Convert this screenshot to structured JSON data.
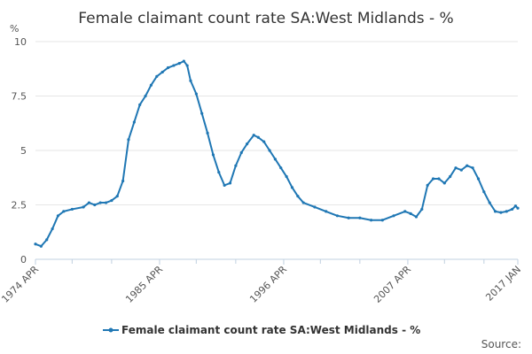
{
  "colors": {
    "series": "#1f77b4",
    "grid": "#e6e6e6",
    "text": "#333333"
  },
  "source_label": "Source:",
  "chart_data": {
    "type": "line",
    "title": "Female claimant count rate SA:West Midlands - %",
    "ylabel": "%",
    "ylim": [
      0,
      10
    ],
    "y_ticks": [
      0,
      2.5,
      5,
      7.5,
      10
    ],
    "y_tick_labels": [
      "0",
      "2.5",
      "5",
      "7.5",
      "10"
    ],
    "x_range": [
      1974.25,
      2017.0
    ],
    "x_ticks": [
      {
        "x": 1974.25,
        "label": "1974 APR"
      },
      {
        "x": 1985.25,
        "label": "1985 APR"
      },
      {
        "x": 1996.25,
        "label": "1996 APR"
      },
      {
        "x": 2007.25,
        "label": "2007 APR"
      },
      {
        "x": 2017.0,
        "label": "2017 JAN"
      }
    ],
    "minor_ticks": [
      1977.5,
      1981.0,
      1988.5,
      1992.0,
      1999.5,
      2003.0,
      2010.5,
      2014.0
    ],
    "grid": true,
    "legend_position": "bottom",
    "series": [
      {
        "name": "Female claimant count rate SA:West Midlands - %",
        "color": "#1f77b4",
        "points": [
          [
            1974.25,
            0.7
          ],
          [
            1974.75,
            0.6
          ],
          [
            1975.25,
            0.9
          ],
          [
            1975.75,
            1.4
          ],
          [
            1976.25,
            2.0
          ],
          [
            1976.75,
            2.2
          ],
          [
            1977.5,
            2.3
          ],
          [
            1978.5,
            2.4
          ],
          [
            1979.0,
            2.6
          ],
          [
            1979.5,
            2.5
          ],
          [
            1980.0,
            2.6
          ],
          [
            1980.5,
            2.6
          ],
          [
            1981.0,
            2.7
          ],
          [
            1981.5,
            2.9
          ],
          [
            1982.0,
            3.6
          ],
          [
            1982.5,
            5.5
          ],
          [
            1983.0,
            6.3
          ],
          [
            1983.5,
            7.1
          ],
          [
            1984.0,
            7.5
          ],
          [
            1984.5,
            8.0
          ],
          [
            1985.0,
            8.4
          ],
          [
            1985.5,
            8.6
          ],
          [
            1986.0,
            8.8
          ],
          [
            1986.5,
            8.9
          ],
          [
            1987.0,
            9.0
          ],
          [
            1987.4,
            9.1
          ],
          [
            1987.7,
            8.9
          ],
          [
            1988.0,
            8.2
          ],
          [
            1988.5,
            7.6
          ],
          [
            1989.0,
            6.7
          ],
          [
            1989.5,
            5.8
          ],
          [
            1990.0,
            4.8
          ],
          [
            1990.5,
            4.0
          ],
          [
            1991.0,
            3.4
          ],
          [
            1991.5,
            3.5
          ],
          [
            1992.0,
            4.3
          ],
          [
            1992.5,
            4.9
          ],
          [
            1993.0,
            5.3
          ],
          [
            1993.6,
            5.7
          ],
          [
            1994.0,
            5.6
          ],
          [
            1994.5,
            5.4
          ],
          [
            1995.0,
            5.0
          ],
          [
            1995.5,
            4.6
          ],
          [
            1996.0,
            4.2
          ],
          [
            1996.5,
            3.8
          ],
          [
            1997.0,
            3.3
          ],
          [
            1997.5,
            2.9
          ],
          [
            1998.0,
            2.6
          ],
          [
            1999.0,
            2.4
          ],
          [
            2000.0,
            2.2
          ],
          [
            2001.0,
            2.0
          ],
          [
            2002.0,
            1.9
          ],
          [
            2003.0,
            1.9
          ],
          [
            2004.0,
            1.8
          ],
          [
            2005.0,
            1.8
          ],
          [
            2006.0,
            2.0
          ],
          [
            2007.0,
            2.2
          ],
          [
            2007.5,
            2.1
          ],
          [
            2008.0,
            1.95
          ],
          [
            2008.5,
            2.3
          ],
          [
            2009.0,
            3.4
          ],
          [
            2009.5,
            3.7
          ],
          [
            2010.0,
            3.7
          ],
          [
            2010.5,
            3.5
          ],
          [
            2011.0,
            3.8
          ],
          [
            2011.5,
            4.2
          ],
          [
            2012.0,
            4.1
          ],
          [
            2012.5,
            4.3
          ],
          [
            2013.0,
            4.2
          ],
          [
            2013.5,
            3.7
          ],
          [
            2014.0,
            3.1
          ],
          [
            2014.5,
            2.6
          ],
          [
            2015.0,
            2.2
          ],
          [
            2015.5,
            2.15
          ],
          [
            2016.0,
            2.2
          ],
          [
            2016.5,
            2.3
          ],
          [
            2016.8,
            2.45
          ],
          [
            2017.0,
            2.35
          ]
        ]
      }
    ]
  }
}
